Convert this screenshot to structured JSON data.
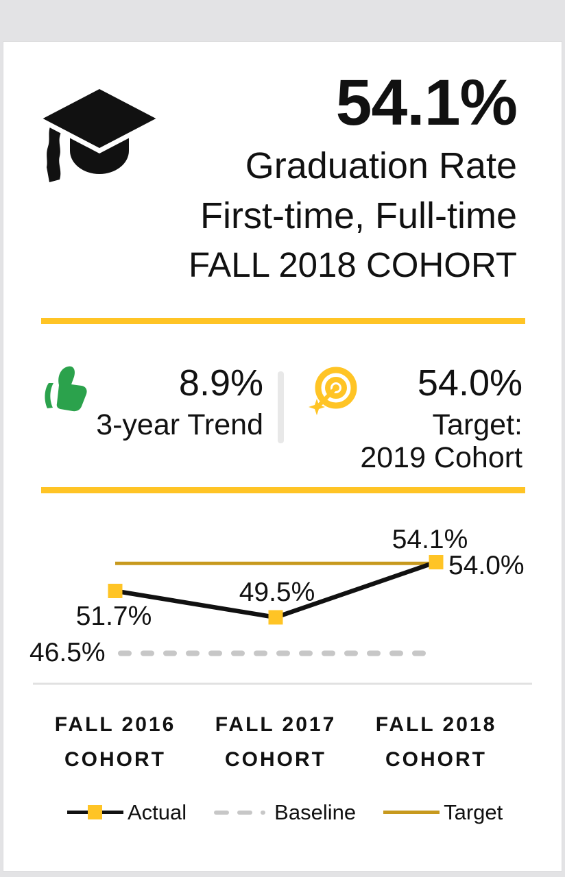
{
  "header": {
    "icon": "graduation-cap-icon",
    "value": "54.1%",
    "subtitle_line1": "Graduation Rate",
    "subtitle_line2": "First-time, Full-time",
    "subtitle_line3": "FALL 2018 COHORT"
  },
  "stats": {
    "trend": {
      "icon": "thumbs-up-icon",
      "value": "8.9%",
      "label": "3-year Trend"
    },
    "target": {
      "icon": "target-icon",
      "value": "54.0%",
      "label_line1": "Target:",
      "label_line2": "2019 Cohort"
    }
  },
  "colors": {
    "accent_yellow": "#FFC425",
    "target_gold": "#C7991E",
    "trend_green": "#2BA24C",
    "baseline_gray": "#C7C7C7",
    "frame_gray": "#E3E3E5",
    "text": "#111111"
  },
  "chart_data": {
    "type": "line",
    "categories": [
      "FALL 2016 COHORT",
      "FALL 2017 COHORT",
      "FALL 2018 COHORT"
    ],
    "series": [
      {
        "name": "Actual",
        "values": [
          51.7,
          49.5,
          54.1
        ],
        "color": "#111111",
        "marker": "square",
        "marker_color": "#FFC425"
      },
      {
        "name": "Baseline",
        "values": [
          46.5,
          46.5,
          46.5
        ],
        "color": "#C7C7C7",
        "style": "dashed"
      },
      {
        "name": "Target",
        "values": [
          54.0,
          54.0,
          54.0
        ],
        "color": "#C7991E",
        "style": "solid"
      }
    ],
    "point_labels": [
      "51.7%",
      "49.5%",
      "54.1%"
    ],
    "target_label": "54.0%",
    "baseline_label": "46.5%",
    "legend": [
      "Actual",
      "Baseline",
      "Target"
    ],
    "legend_position": "bottom",
    "ylim": [
      44,
      57
    ],
    "grid": false,
    "title": ""
  },
  "xaxis": [
    {
      "top": "FALL 2016",
      "bottom": "COHORT"
    },
    {
      "top": "FALL 2017",
      "bottom": "COHORT"
    },
    {
      "top": "FALL 2018",
      "bottom": "COHORT"
    }
  ]
}
